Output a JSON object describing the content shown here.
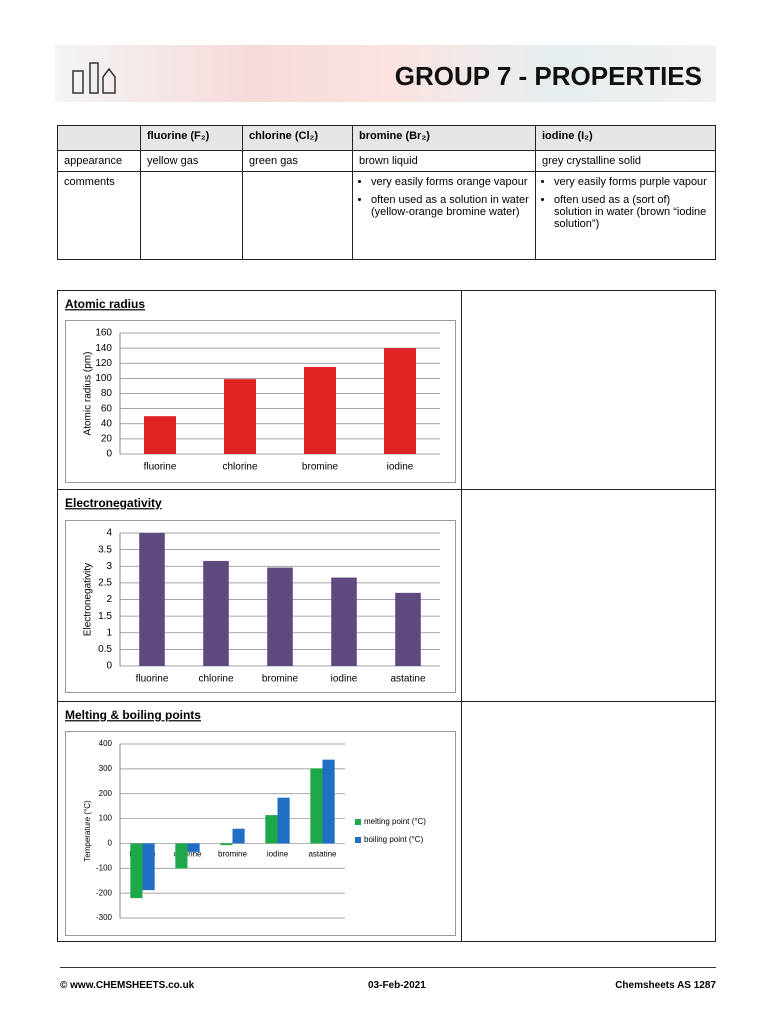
{
  "header": {
    "title": "GROUP 7 - PROPERTIES"
  },
  "table": {
    "columns": [
      "fluorine (F₂)",
      "chlorine (Cl₂)",
      "bromine (Br₂)",
      "iodine (I₂)"
    ],
    "rows": [
      {
        "label": "appearance",
        "cells": [
          "yellow gas",
          "green gas",
          "brown liquid",
          "grey crystalline solid"
        ]
      },
      {
        "label": "comments",
        "cells": [
          null,
          null,
          [
            "very easily forms orange vapour",
            "often used as a solution in water (yellow-orange bromine water)"
          ],
          [
            "very easily forms purple vapour",
            "often used as a (sort of) solution in water (brown “iodine solution”)"
          ]
        ]
      }
    ]
  },
  "chart_data": [
    {
      "type": "bar",
      "title": "Atomic radius",
      "y_label": "Atomic radius (pm)",
      "categories": [
        "fluorine",
        "chlorine",
        "bromine",
        "iodine"
      ],
      "values": [
        50,
        99,
        115,
        140
      ],
      "color": "#e02424",
      "ylim": [
        0,
        160
      ],
      "yticks": [
        0,
        20,
        40,
        60,
        80,
        100,
        120,
        140,
        160
      ],
      "grid": true
    },
    {
      "type": "bar",
      "title": "Electronegativity",
      "y_label": "Electronegativity",
      "categories": [
        "fluorine",
        "chlorine",
        "bromine",
        "iodine",
        "astatine"
      ],
      "values": [
        4.0,
        3.16,
        2.96,
        2.66,
        2.2
      ],
      "color": "#5e4a7e",
      "ylim": [
        0,
        4
      ],
      "yticks": [
        0,
        0.5,
        1,
        1.5,
        2,
        2.5,
        3,
        3.5,
        4
      ],
      "grid": true
    },
    {
      "type": "bar",
      "title": "Melting & boiling points",
      "y_label": "Temperature (°C)",
      "categories": [
        "fluorine",
        "chlorine",
        "bromine",
        "iodine",
        "astatine"
      ],
      "series": [
        {
          "name": "melting point (°C)",
          "color": "#1fa84a",
          "values": [
            -220,
            -101,
            -7,
            114,
            302
          ]
        },
        {
          "name": "boiling point (°C)",
          "color": "#1f6fc4",
          "values": [
            -188,
            -34,
            59,
            184,
            337
          ]
        }
      ],
      "ylim": [
        -300,
        400
      ],
      "yticks": [
        -300,
        -200,
        -100,
        0,
        100,
        200,
        300,
        400
      ],
      "grid": true,
      "legend": "right"
    }
  ],
  "footer": {
    "left": "© www.CHEMSHEETS.co.uk",
    "center": "03-Feb-2021",
    "right": "Chemsheets AS 1287"
  }
}
